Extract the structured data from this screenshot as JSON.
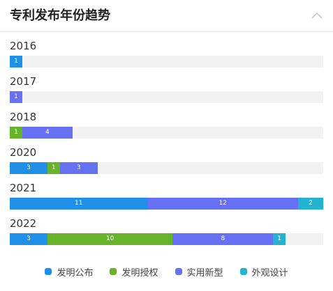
{
  "header": {
    "title": "专利发布年份趋势",
    "collapse_icon": "chevron-up-icon"
  },
  "chart_data": {
    "type": "bar",
    "orientation": "horizontal-stacked",
    "max_total": 25,
    "series": [
      {
        "name": "发明公布",
        "color": "#1f8fe8",
        "values": [
          1,
          0,
          0,
          3,
          11,
          3
        ]
      },
      {
        "name": "发明授权",
        "color": "#67b42a",
        "values": [
          0,
          0,
          1,
          1,
          0,
          10
        ]
      },
      {
        "name": "实用新型",
        "color": "#6670f2",
        "values": [
          0,
          1,
          4,
          3,
          12,
          8
        ]
      },
      {
        "name": "外观设计",
        "color": "#23b2d0",
        "values": [
          0,
          0,
          0,
          0,
          2,
          1
        ]
      }
    ],
    "categories": [
      "2016",
      "2017",
      "2018",
      "2020",
      "2021",
      "2022"
    ],
    "legend_position": "bottom"
  }
}
